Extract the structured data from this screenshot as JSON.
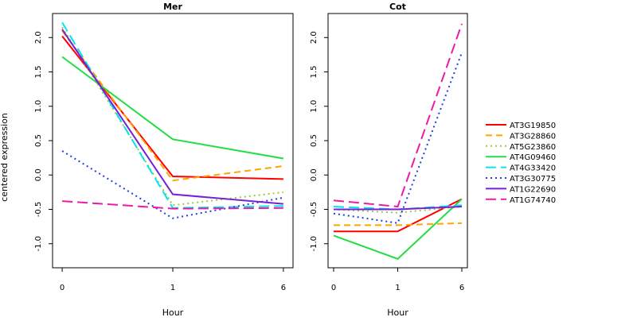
{
  "chart_data": {
    "type": "line",
    "ylabel": "centered expression",
    "x": [
      0,
      1,
      6
    ],
    "x_tick_labels": [
      "0",
      "1",
      "6"
    ],
    "y_ticks": [
      -1.0,
      -0.5,
      0.0,
      0.5,
      1.0,
      1.5,
      2.0
    ],
    "y_tick_labels": [
      "-1.0",
      "-0.5",
      "0.0",
      "0.5",
      "1.0",
      "1.5",
      "2.0"
    ],
    "ylim": [
      -1.35,
      2.35
    ],
    "legend_position": "right",
    "legend": [
      {
        "name": "AT3G19850",
        "color": "#ff0000",
        "dash": "solid"
      },
      {
        "name": "AT3G28860",
        "color": "#ffa500",
        "dash": "dashed"
      },
      {
        "name": "AT5G23860",
        "color": "#9acd32",
        "dash": "dotted"
      },
      {
        "name": "AT4G09460",
        "color": "#22dd44",
        "dash": "solid"
      },
      {
        "name": "AT4G33420",
        "color": "#00e5ee",
        "dash": "longdash"
      },
      {
        "name": "AT3G30775",
        "color": "#1f3fe0",
        "dash": "dotted"
      },
      {
        "name": "AT1G22690",
        "color": "#7a1fd6",
        "dash": "solid"
      },
      {
        "name": "AT1G74740",
        "color": "#ee1aa5",
        "dash": "longdash"
      }
    ],
    "panels": [
      {
        "title": "Mer",
        "xlabel": "Hour",
        "series": [
          {
            "name": "AT3G19850",
            "values": [
              2.02,
              -0.02,
              -0.06
            ]
          },
          {
            "name": "AT3G28860",
            "values": [
              2.1,
              -0.08,
              0.13
            ]
          },
          {
            "name": "AT5G23860",
            "values": [
              2.15,
              -0.44,
              -0.25
            ]
          },
          {
            "name": "AT4G09460",
            "values": [
              1.72,
              0.52,
              0.24
            ]
          },
          {
            "name": "AT4G33420",
            "values": [
              2.22,
              -0.48,
              -0.45
            ]
          },
          {
            "name": "AT3G30775",
            "values": [
              0.35,
              -0.63,
              -0.33
            ]
          },
          {
            "name": "AT1G22690",
            "values": [
              2.12,
              -0.28,
              -0.42
            ]
          },
          {
            "name": "AT1G74740",
            "values": [
              -0.38,
              -0.49,
              -0.48
            ]
          }
        ]
      },
      {
        "title": "Cot",
        "xlabel": "Hour",
        "series": [
          {
            "name": "AT3G19850",
            "values": [
              -0.82,
              -0.82,
              -0.35
            ]
          },
          {
            "name": "AT3G28860",
            "values": [
              -0.73,
              -0.73,
              -0.7
            ]
          },
          {
            "name": "AT5G23860",
            "values": [
              -0.5,
              -0.55,
              -0.46
            ]
          },
          {
            "name": "AT4G09460",
            "values": [
              -0.88,
              -1.22,
              -0.35
            ]
          },
          {
            "name": "AT4G33420",
            "values": [
              -0.46,
              -0.5,
              -0.44
            ]
          },
          {
            "name": "AT3G30775",
            "values": [
              -0.56,
              -0.7,
              1.78
            ]
          },
          {
            "name": "AT1G22690",
            "values": [
              -0.5,
              -0.5,
              -0.46
            ]
          },
          {
            "name": "AT1G74740",
            "values": [
              -0.37,
              -0.46,
              2.2
            ]
          }
        ]
      }
    ]
  }
}
